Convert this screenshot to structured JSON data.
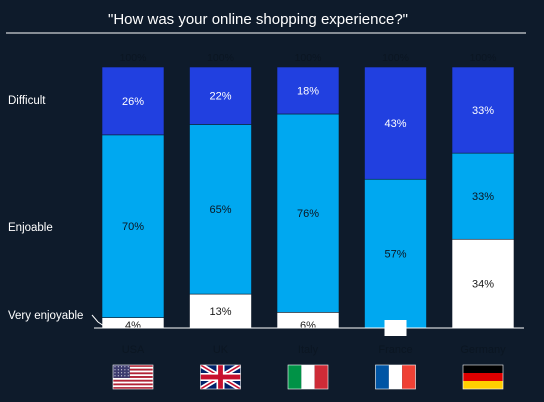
{
  "chart_data": {
    "type": "bar",
    "stacked": true,
    "title": "\"How was your online shopping experience?\"",
    "categories": [
      "USA",
      "UK",
      "Italy",
      "France",
      "Germany"
    ],
    "totals": [
      "100%",
      "100%",
      "100%",
      "100%",
      "100%"
    ],
    "series": [
      {
        "name": "Very enjoyable",
        "values": [
          4,
          13,
          6,
          0,
          34
        ],
        "labels": [
          "4%",
          "13%",
          "6%",
          "",
          "34%"
        ],
        "color": "#ffffff",
        "label_color": "#1a1a1a"
      },
      {
        "name": "Enjoable",
        "values": [
          70,
          65,
          76,
          57,
          33
        ],
        "labels": [
          "70%",
          "65%",
          "76%",
          "57%",
          "33%"
        ],
        "color": "#00a8f0",
        "label_color": "#0b1622"
      },
      {
        "name": "Difficult",
        "values": [
          26,
          22,
          18,
          43,
          33
        ],
        "labels": [
          "26%",
          "22%",
          "18%",
          "43%",
          "33%"
        ],
        "color": "#2140e0",
        "label_color": "#ffffff"
      }
    ],
    "ylim": [
      0,
      100
    ],
    "grid": false,
    "legend": "left",
    "flag_icons": [
      "usa-flag-icon",
      "uk-flag-icon",
      "italy-flag-icon",
      "france-flag-icon",
      "germany-flag-icon"
    ],
    "colors": {
      "background": "#0e1b2b",
      "text": "#ffffff"
    }
  }
}
